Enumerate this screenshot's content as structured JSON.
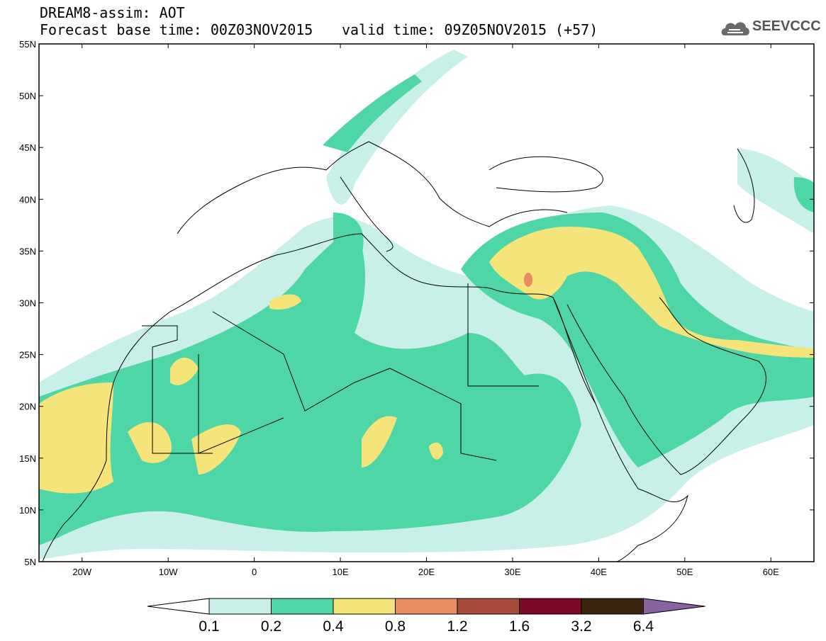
{
  "title": {
    "line1": "DREAM8-assim: AOT",
    "line2": "Forecast base time: 00Z03NOV2015",
    "valid": "valid time: 09Z05NOV2015 (+57)"
  },
  "logo": {
    "text": "SEEVCCC",
    "icon": "cloud-icon"
  },
  "axes": {
    "lat_labels": [
      "55N",
      "50N",
      "45N",
      "40N",
      "35N",
      "30N",
      "25N",
      "20N",
      "15N",
      "10N",
      "5N"
    ],
    "lat_values": [
      55,
      50,
      45,
      40,
      35,
      30,
      25,
      20,
      15,
      10,
      5
    ],
    "lon_labels": [
      "20W",
      "10W",
      "0",
      "10E",
      "20E",
      "30E",
      "40E",
      "50E",
      "60E"
    ],
    "lon_values": [
      -20,
      -10,
      0,
      10,
      20,
      30,
      40,
      50,
      60
    ],
    "lon_range": [
      -25,
      65
    ],
    "lat_range": [
      5,
      55
    ]
  },
  "colorbar": {
    "labels": [
      "0.1",
      "0.2",
      "0.4",
      "0.8",
      "1.2",
      "1.6",
      "3.2",
      "6.4"
    ],
    "colors": [
      "#c8f0e8",
      "#4fd6a6",
      "#f5e47a",
      "#e88c62",
      "#a84a3c",
      "#7a0a28",
      "#3a2410",
      "#8a62a0"
    ]
  },
  "colors": {
    "light": "#c8f0e8",
    "green": "#4fd6a6",
    "yellow": "#f5e47a",
    "orange": "#e88c62"
  }
}
